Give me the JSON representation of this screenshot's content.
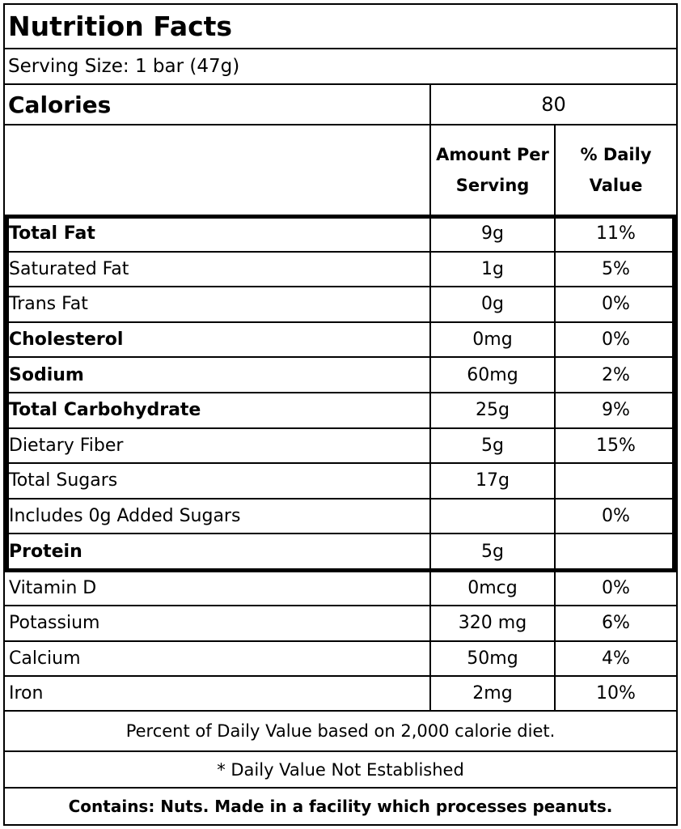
{
  "title": "Nutrition Facts",
  "serving_size": "Serving Size: 1 bar (47g)",
  "calories": {
    "label": "Calories",
    "value": "80"
  },
  "columns": {
    "amount": "Amount Per Serving",
    "daily_value": "% Daily Value"
  },
  "nutrients": [
    {
      "name": "Total Fat",
      "amount": "9g",
      "dv": "11%",
      "bold": true
    },
    {
      "name": "Saturated Fat",
      "amount": "1g",
      "dv": "5%",
      "bold": false
    },
    {
      "name": "Trans Fat",
      "amount": "0g",
      "dv": "0%",
      "bold": false
    },
    {
      "name": "Cholesterol",
      "amount": "0mg",
      "dv": "0%",
      "bold": true
    },
    {
      "name": "Sodium",
      "amount": "60mg",
      "dv": "2%",
      "bold": true
    },
    {
      "name": "Total Carbohydrate",
      "amount": "25g",
      "dv": "9%",
      "bold": true
    },
    {
      "name": "Dietary Fiber",
      "amount": "5g",
      "dv": "15%",
      "bold": false
    },
    {
      "name": "Total Sugars",
      "amount": "17g",
      "dv": "",
      "bold": false
    },
    {
      "name": "Includes 0g Added Sugars",
      "amount": "",
      "dv": "0%",
      "bold": false
    },
    {
      "name": "Protein",
      "amount": "5g",
      "dv": "",
      "bold": true
    }
  ],
  "vitamins": [
    {
      "name": "Vitamin D",
      "amount": "0mcg",
      "dv": "0%"
    },
    {
      "name": "Potassium",
      "amount": "320 mg",
      "dv": "6%"
    },
    {
      "name": "Calcium",
      "amount": "50mg",
      "dv": "4%"
    },
    {
      "name": "Iron",
      "amount": "2mg",
      "dv": "10%"
    }
  ],
  "footnote_dv": "Percent of Daily Value based on 2,000 calorie diet.",
  "footnote_na": "* Daily Value Not Established",
  "contains": "Contains:  Nuts.  Made in a facility which processes peanuts."
}
